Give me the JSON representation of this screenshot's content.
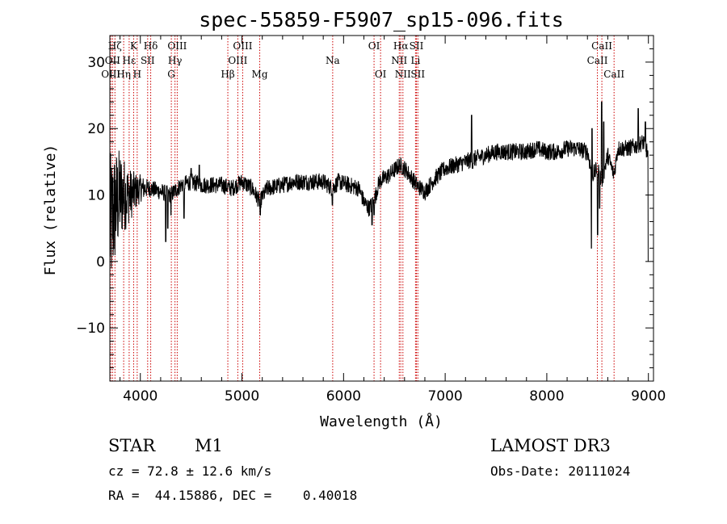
{
  "chart_data": {
    "type": "line",
    "title": "spec-55859-F5907_sp15-096.fits",
    "xlabel": "Wavelength (Å)",
    "ylabel": "Flux (relative)",
    "xlim": [
      3700,
      9050
    ],
    "ylim": [
      -18,
      34
    ],
    "xticks": [
      4000,
      5000,
      6000,
      7000,
      8000,
      9000
    ],
    "yticks": [
      -10,
      0,
      10,
      20,
      30
    ],
    "xtick_labels": [
      "4000",
      "5000",
      "6000",
      "7000",
      "8000",
      "9000"
    ],
    "ytick_labels": [
      "−10",
      "0",
      "10",
      "20",
      "30"
    ],
    "spectrum_anchors": [
      {
        "x": 3700,
        "y": 5
      },
      {
        "x": 3750,
        "y": 8
      },
      {
        "x": 3800,
        "y": 10
      },
      {
        "x": 3900,
        "y": 10
      },
      {
        "x": 4000,
        "y": 11
      },
      {
        "x": 4100,
        "y": 11
      },
      {
        "x": 4200,
        "y": 10.5
      },
      {
        "x": 4300,
        "y": 10
      },
      {
        "x": 4400,
        "y": 11.5
      },
      {
        "x": 4500,
        "y": 12
      },
      {
        "x": 4600,
        "y": 11.5
      },
      {
        "x": 4700,
        "y": 11.5
      },
      {
        "x": 4800,
        "y": 11.5
      },
      {
        "x": 4900,
        "y": 11
      },
      {
        "x": 5000,
        "y": 12
      },
      {
        "x": 5100,
        "y": 11
      },
      {
        "x": 5175,
        "y": 9
      },
      {
        "x": 5250,
        "y": 11
      },
      {
        "x": 5400,
        "y": 11.5
      },
      {
        "x": 5500,
        "y": 12
      },
      {
        "x": 5600,
        "y": 12
      },
      {
        "x": 5700,
        "y": 12
      },
      {
        "x": 5800,
        "y": 12
      },
      {
        "x": 5890,
        "y": 11
      },
      {
        "x": 5950,
        "y": 12
      },
      {
        "x": 6050,
        "y": 11.5
      },
      {
        "x": 6150,
        "y": 11
      },
      {
        "x": 6200,
        "y": 9
      },
      {
        "x": 6250,
        "y": 8
      },
      {
        "x": 6300,
        "y": 9
      },
      {
        "x": 6350,
        "y": 12
      },
      {
        "x": 6450,
        "y": 13
      },
      {
        "x": 6550,
        "y": 14.5
      },
      {
        "x": 6600,
        "y": 14
      },
      {
        "x": 6650,
        "y": 13
      },
      {
        "x": 6720,
        "y": 11.5
      },
      {
        "x": 6800,
        "y": 10.5
      },
      {
        "x": 6900,
        "y": 12.5
      },
      {
        "x": 7000,
        "y": 14
      },
      {
        "x": 7100,
        "y": 14.5
      },
      {
        "x": 7200,
        "y": 15
      },
      {
        "x": 7300,
        "y": 15.5
      },
      {
        "x": 7400,
        "y": 16
      },
      {
        "x": 7500,
        "y": 16.5
      },
      {
        "x": 7600,
        "y": 16.5
      },
      {
        "x": 7700,
        "y": 16.5
      },
      {
        "x": 7800,
        "y": 16.5
      },
      {
        "x": 7900,
        "y": 17
      },
      {
        "x": 8000,
        "y": 16.5
      },
      {
        "x": 8100,
        "y": 16.5
      },
      {
        "x": 8200,
        "y": 17
      },
      {
        "x": 8300,
        "y": 17
      },
      {
        "x": 8400,
        "y": 16.5
      },
      {
        "x": 8450,
        "y": 13
      },
      {
        "x": 8500,
        "y": 14
      },
      {
        "x": 8540,
        "y": 12
      },
      {
        "x": 8600,
        "y": 16
      },
      {
        "x": 8660,
        "y": 13
      },
      {
        "x": 8700,
        "y": 17
      },
      {
        "x": 8800,
        "y": 17
      },
      {
        "x": 8900,
        "y": 17.5
      },
      {
        "x": 8950,
        "y": 18
      },
      {
        "x": 9000,
        "y": 16
      }
    ],
    "spectrum_features": [
      {
        "x": 4250,
        "y": 3
      },
      {
        "x": 4270,
        "y": 5
      },
      {
        "x": 4302,
        "y": 7
      },
      {
        "x": 4430,
        "y": 6.5
      },
      {
        "x": 4500,
        "y": 14
      },
      {
        "x": 4580,
        "y": 14.5
      },
      {
        "x": 5180,
        "y": 7
      },
      {
        "x": 5890,
        "y": 8.5
      },
      {
        "x": 6280,
        "y": 5.5
      },
      {
        "x": 6300,
        "y": 7
      },
      {
        "x": 7260,
        "y": 22
      },
      {
        "x": 7270,
        "y": 14
      },
      {
        "x": 8440,
        "y": 2
      },
      {
        "x": 8445,
        "y": 20
      },
      {
        "x": 8500,
        "y": 4
      },
      {
        "x": 8520,
        "y": 8
      },
      {
        "x": 8540,
        "y": 24
      },
      {
        "x": 8560,
        "y": 21
      },
      {
        "x": 8900,
        "y": 23
      },
      {
        "x": 8970,
        "y": 21
      },
      {
        "x": 9000,
        "y": 0
      }
    ],
    "blue_noise": {
      "range": [
        3700,
        4120
      ],
      "amplitude": 10
    },
    "lines": [
      {
        "label": "Hζ",
        "x": 3750,
        "row": 0
      },
      {
        "label": "OII",
        "x": 3727,
        "row": 1
      },
      {
        "label": "OIII",
        "x": 3710,
        "row": 2
      },
      {
        "label": "Hη",
        "x": 3836,
        "row": 2
      },
      {
        "label": "K",
        "x": 3934,
        "row": 0
      },
      {
        "label": "H",
        "x": 3969,
        "row": 2
      },
      {
        "label": "Hε",
        "x": 3890,
        "row": 1
      },
      {
        "label": "SII",
        "x": 4072,
        "row": 1
      },
      {
        "label": "Hδ",
        "x": 4102,
        "row": 0
      },
      {
        "label": "OIII",
        "x": 4363,
        "row": 0
      },
      {
        "label": "Hγ",
        "x": 4341,
        "row": 1
      },
      {
        "label": "G",
        "x": 4305,
        "row": 2
      },
      {
        "label": "Hβ",
        "x": 4861,
        "row": 2
      },
      {
        "label": "OIII",
        "x": 5007,
        "row": 0
      },
      {
        "label": "OIII",
        "x": 4959,
        "row": 1
      },
      {
        "label": "Mg",
        "x": 5175,
        "row": 2
      },
      {
        "label": "Na",
        "x": 5893,
        "row": 1
      },
      {
        "label": "OI",
        "x": 6300,
        "row": 0
      },
      {
        "label": "OI",
        "x": 6364,
        "row": 2
      },
      {
        "label": "Hα",
        "x": 6563,
        "row": 0
      },
      {
        "label": "NII",
        "x": 6548,
        "row": 1
      },
      {
        "label": "NII",
        "x": 6584,
        "row": 2
      },
      {
        "label": "SII",
        "x": 6717,
        "row": 0
      },
      {
        "label": "Li",
        "x": 6708,
        "row": 1
      },
      {
        "label": "SII",
        "x": 6731,
        "row": 2
      },
      {
        "label": "CaII",
        "x": 8542,
        "row": 0
      },
      {
        "label": "CaII",
        "x": 8498,
        "row": 1
      },
      {
        "label": "CaII",
        "x": 8662,
        "row": 2
      }
    ],
    "line_color": "#cc0000",
    "spectrum_color": "#000000"
  },
  "info": {
    "object_class": "STAR",
    "subclass": "M1",
    "velocity": "cz = 72.8 ± 12.6 km/s",
    "coordinates": "RA =  44.15886, DEC =    0.40018",
    "survey": "LAMOST DR3",
    "obs_date": "Obs-Date: 20111024"
  }
}
